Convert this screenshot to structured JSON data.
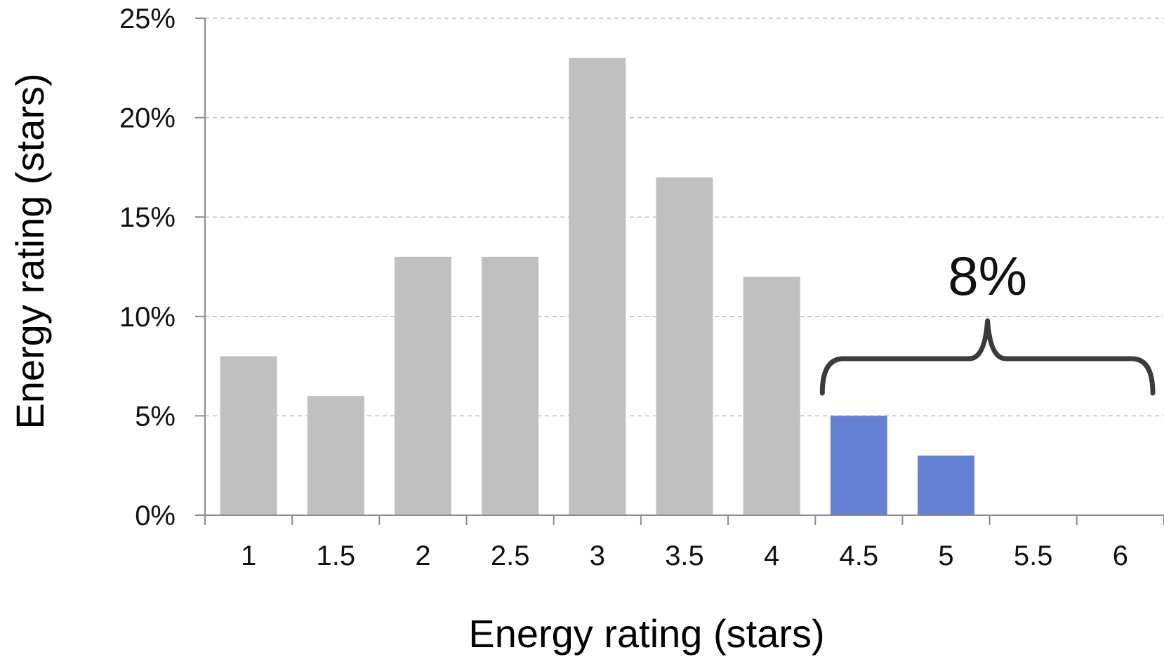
{
  "chart_data": {
    "type": "bar",
    "title": "",
    "xlabel": "Energy rating (stars)",
    "ylabel": "Energy rating (stars)",
    "categories": [
      "1",
      "1.5",
      "2",
      "2.5",
      "3",
      "3.5",
      "4",
      "4.5",
      "5",
      "5.5",
      "6"
    ],
    "values": [
      8,
      6,
      13,
      13,
      23,
      17,
      12,
      5,
      3,
      0,
      0
    ],
    "highlight": [
      false,
      false,
      false,
      false,
      false,
      false,
      false,
      true,
      true,
      false,
      false
    ],
    "colors": {
      "default": "#c0c0c0",
      "highlight": "#6581d6",
      "grid": "#bfbfbf",
      "axis": "#8c8c8c",
      "brace": "#3b3b3b"
    },
    "ylim": [
      0,
      25
    ],
    "yticks": [
      0,
      5,
      10,
      15,
      20,
      25
    ],
    "ytick_labels": [
      "0%",
      "5%",
      "10%",
      "15%",
      "20%",
      "25%"
    ],
    "grid": true,
    "grid_style": "dashed",
    "annotation": {
      "text": "8%",
      "from_category": "4.5",
      "to_category": "6"
    }
  }
}
